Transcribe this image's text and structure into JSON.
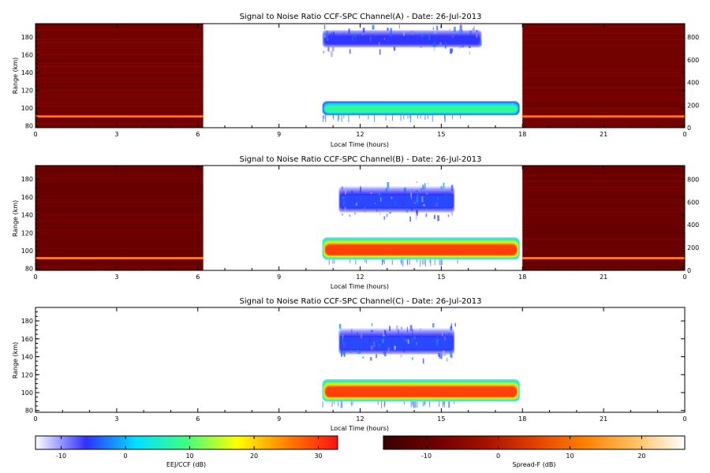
{
  "chart_data": [
    {
      "type": "heatmap",
      "title": "Signal to Noise Ratio CCF-SPC Channel(A) - Date: 26-Jul-2013",
      "xlabel": "Local Time (hours)",
      "ylabel": "Range (km)",
      "xlim": [
        0,
        24
      ],
      "ylim": [
        78,
        195
      ],
      "x_ticks": [
        "0",
        "3",
        "6",
        "9",
        "12",
        "15",
        "18",
        "21",
        "0"
      ],
      "y_ticks": [
        "80",
        "100",
        "120",
        "140",
        "160",
        "180"
      ],
      "y2_ticks": [
        "0",
        "200",
        "400",
        "600",
        "800"
      ],
      "y2lim": [
        0,
        920
      ],
      "spreadf_time_ranges": [
        [
          0,
          6.2
        ],
        [
          18,
          24
        ]
      ],
      "noise_floor_db": -8,
      "spreadf_bright_band": {
        "range_km": 91,
        "level_db": 14
      },
      "eej_features": [
        {
          "t_start": 10.6,
          "t_end": 17.9,
          "bottom_km": 92,
          "top_km": 108,
          "peak_db": 8,
          "edge_db": -6
        },
        {
          "t_start": 10.6,
          "t_end": 16.5,
          "bottom_km": 168,
          "top_km": 188,
          "peak_db": -6,
          "edge_db": -11
        }
      ]
    },
    {
      "type": "heatmap",
      "title": "Signal to Noise Ratio CCF-SPC Channel(B) - Date: 26-Jul-2013",
      "xlabel": "Local Time (hours)",
      "ylabel": "Range (km)",
      "xlim": [
        0,
        24
      ],
      "ylim": [
        78,
        195
      ],
      "x_ticks": [
        "0",
        "3",
        "6",
        "9",
        "12",
        "15",
        "18",
        "21",
        "0"
      ],
      "y_ticks": [
        "80",
        "100",
        "120",
        "140",
        "160",
        "180"
      ],
      "y2_ticks": [
        "0",
        "200",
        "400",
        "600",
        "800"
      ],
      "y2lim": [
        0,
        920
      ],
      "spreadf_time_ranges": [
        [
          0,
          6.2
        ],
        [
          18,
          24
        ]
      ],
      "noise_floor_db": -9,
      "spreadf_bright_band": {
        "range_km": 92,
        "level_db": 15
      },
      "eej_features": [
        {
          "t_start": 10.6,
          "t_end": 17.9,
          "bottom_km": 90,
          "top_km": 115,
          "peak_db": 30,
          "edge_db": 0
        },
        {
          "t_start": 11.2,
          "t_end": 15.5,
          "bottom_km": 142,
          "top_km": 172,
          "peak_db": -5,
          "edge_db": -12
        }
      ]
    },
    {
      "type": "heatmap",
      "title": "Signal to Noise Ratio CCF-SPC Channel(C) - Date: 26-Jul-2013",
      "xlabel": "Local Time (hours)",
      "ylabel": "Range (km)",
      "xlim": [
        0,
        24
      ],
      "ylim": [
        78,
        195
      ],
      "x_ticks": [
        "0",
        "3",
        "6",
        "9",
        "12",
        "15",
        "18",
        "21",
        "0"
      ],
      "y_ticks": [
        "80",
        "100",
        "120",
        "140",
        "160",
        "180"
      ],
      "spreadf_time_ranges": [],
      "eej_features": [
        {
          "t_start": 10.6,
          "t_end": 17.9,
          "bottom_km": 90,
          "top_km": 115,
          "peak_db": 30,
          "edge_db": 0
        },
        {
          "t_start": 11.2,
          "t_end": 15.5,
          "bottom_km": 142,
          "top_km": 172,
          "peak_db": -5,
          "edge_db": -12
        }
      ]
    }
  ],
  "colorbars": [
    {
      "label": "EEJ/CCF (dB)",
      "range": [
        -14,
        33
      ],
      "ticks": [
        "-10",
        "0",
        "10",
        "20",
        "30"
      ],
      "tick_values": [
        -10,
        0,
        10,
        20,
        30
      ],
      "stops": [
        "#ffffff",
        "#3030ff",
        "#00e0ff",
        "#40ff80",
        "#ffff00",
        "#ff8000",
        "#ff1010"
      ]
    },
    {
      "label": "Spread-F (dB)",
      "range": [
        -16,
        26
      ],
      "ticks": [
        "-10",
        "0",
        "10",
        "20"
      ],
      "tick_values": [
        -10,
        0,
        10,
        20
      ],
      "stops": [
        "#3a0000",
        "#6a0000",
        "#a01000",
        "#e04000",
        "#ff8000",
        "#ffc060",
        "#ffffff"
      ]
    }
  ]
}
